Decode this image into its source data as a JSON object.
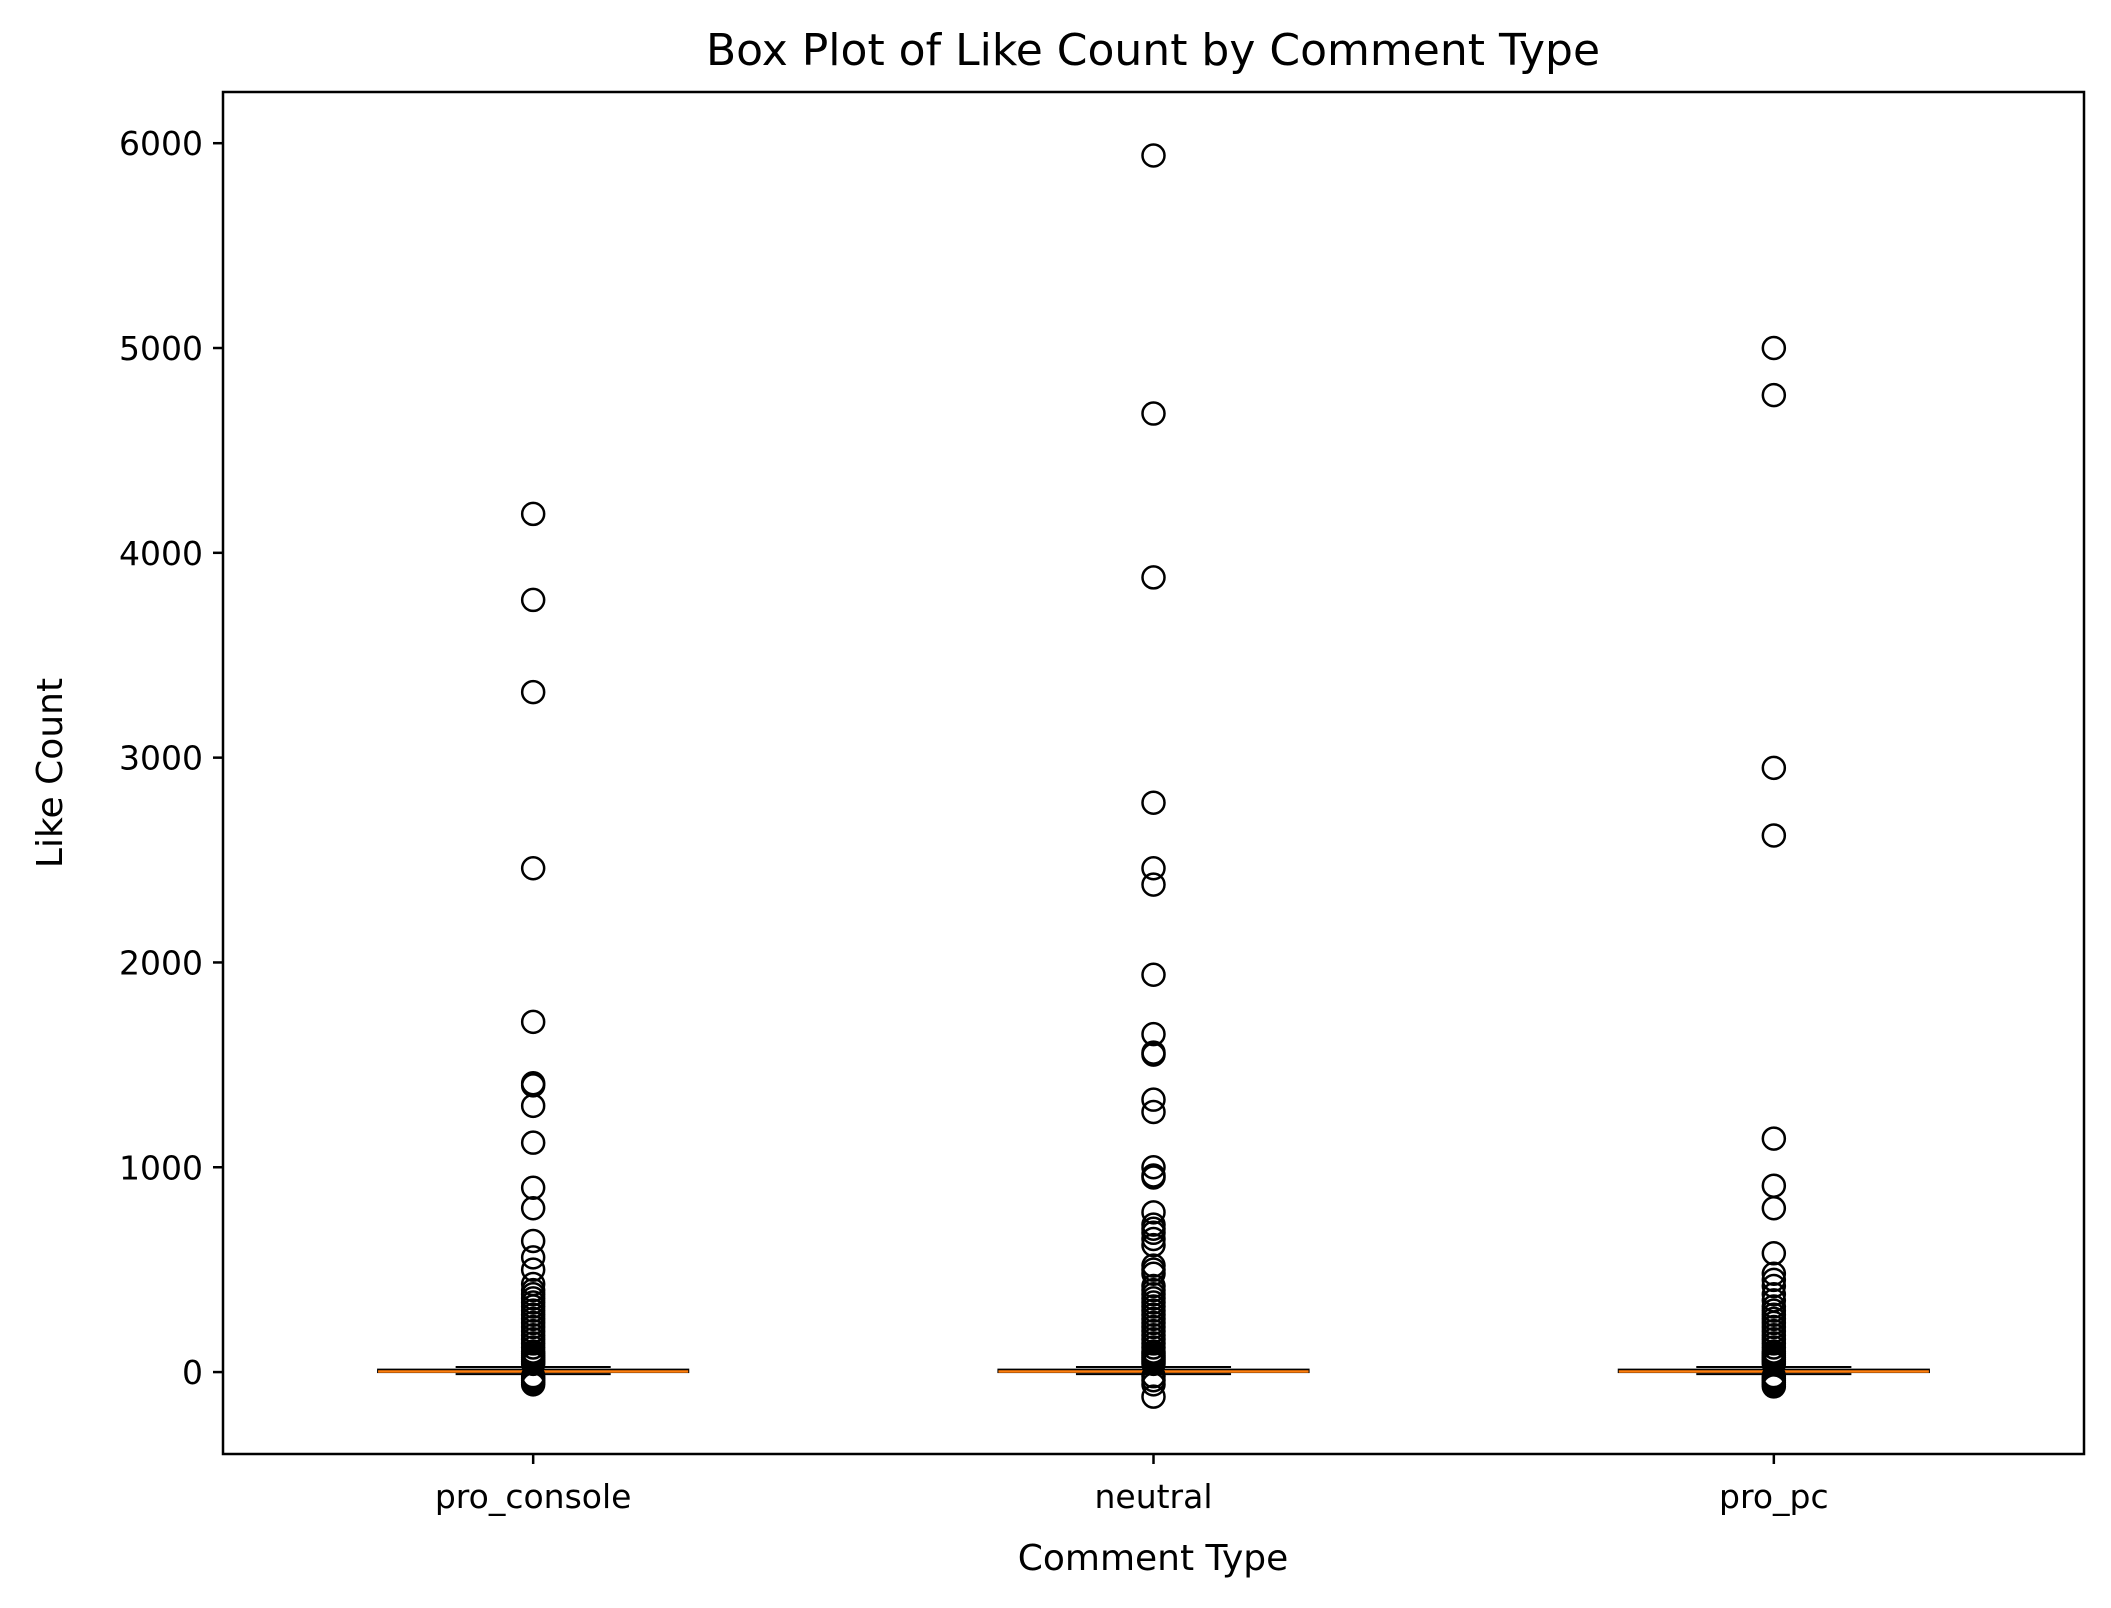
{
  "chart_data": {
    "type": "box",
    "title": "Box Plot of Like Count by Comment Type",
    "xlabel": "Comment Type",
    "ylabel": "Like Count",
    "ylim": [
      -400,
      6250
    ],
    "yticks": [
      0,
      1000,
      2000,
      3000,
      4000,
      5000,
      6000
    ],
    "categories": [
      "pro_console",
      "neutral",
      "pro_pc"
    ],
    "box_color": "#000000",
    "median_color": "#ff7f0e",
    "series": [
      {
        "category": "pro_console",
        "q1": 0,
        "median": 3,
        "q3": 12,
        "whisker_low": -10,
        "whisker_high": 25,
        "outliers": [
          4190,
          3770,
          3320,
          2460,
          1710,
          1410,
          1400,
          1300,
          1120,
          900,
          800,
          640,
          560,
          500,
          430,
          400,
          380,
          360,
          340,
          320,
          300,
          280,
          260,
          240,
          220,
          200,
          180,
          160,
          140,
          120,
          100,
          90,
          80,
          70,
          60,
          50,
          40,
          -20,
          -30,
          -40,
          -50,
          -60
        ]
      },
      {
        "category": "neutral",
        "q1": 0,
        "median": 3,
        "q3": 12,
        "whisker_low": -10,
        "whisker_high": 25,
        "outliers": [
          5940,
          4680,
          3880,
          2780,
          2460,
          2380,
          1940,
          1650,
          1560,
          1550,
          1330,
          1270,
          1000,
          960,
          950,
          780,
          720,
          700,
          680,
          650,
          620,
          520,
          500,
          480,
          420,
          400,
          380,
          360,
          340,
          320,
          300,
          280,
          260,
          240,
          220,
          200,
          180,
          160,
          140,
          120,
          100,
          90,
          80,
          70,
          60,
          50,
          40,
          -20,
          -40,
          -60,
          -120
        ]
      },
      {
        "category": "pro_pc",
        "q1": 0,
        "median": 3,
        "q3": 12,
        "whisker_low": -10,
        "whisker_high": 25,
        "outliers": [
          5000,
          4770,
          2950,
          2620,
          1140,
          910,
          800,
          580,
          480,
          450,
          420,
          380,
          350,
          320,
          300,
          280,
          260,
          240,
          220,
          200,
          180,
          160,
          140,
          120,
          100,
          90,
          80,
          70,
          60,
          50,
          40,
          -20,
          -30,
          -40,
          -50,
          -60,
          -70
        ]
      }
    ]
  }
}
